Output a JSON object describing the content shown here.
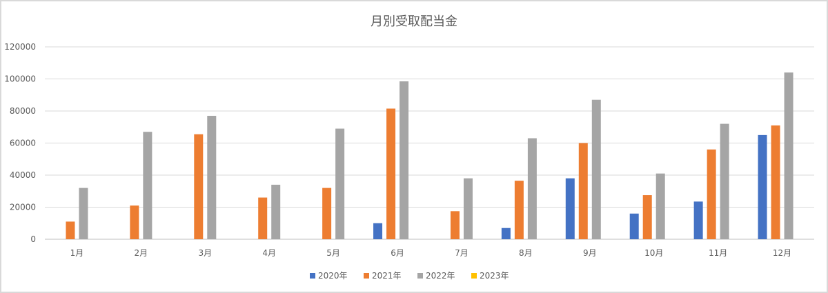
{
  "chart_data": {
    "type": "bar",
    "title": "月別受取配当金",
    "xlabel": "",
    "ylabel": "",
    "ylim": [
      0,
      120000
    ],
    "yticks": [
      0,
      20000,
      40000,
      60000,
      80000,
      100000,
      120000
    ],
    "ytick_labels": [
      "0",
      "20000",
      "40000",
      "60000",
      "80000",
      "100000",
      "120000"
    ],
    "grid": true,
    "legend_position": "bottom",
    "categories": [
      "1月",
      "2月",
      "3月",
      "4月",
      "5月",
      "6月",
      "7月",
      "8月",
      "9月",
      "10月",
      "11月",
      "12月"
    ],
    "series": [
      {
        "name": "2020年",
        "color": "#4472C4",
        "values": [
          0,
          0,
          0,
          0,
          0,
          10000,
          0,
          7000,
          38000,
          16000,
          23500,
          65000
        ]
      },
      {
        "name": "2021年",
        "color": "#ED7D31",
        "values": [
          11000,
          21000,
          65500,
          26000,
          32000,
          81500,
          17500,
          36500,
          60000,
          27500,
          56000,
          71000
        ]
      },
      {
        "name": "2022年",
        "color": "#A5A5A5",
        "values": [
          32000,
          67000,
          77000,
          34000,
          69000,
          98500,
          38000,
          63000,
          87000,
          41000,
          72000,
          104000
        ]
      },
      {
        "name": "2023年",
        "color": "#FFC000",
        "values": [
          0,
          0,
          0,
          0,
          0,
          0,
          0,
          0,
          0,
          0,
          0,
          0
        ]
      }
    ]
  }
}
